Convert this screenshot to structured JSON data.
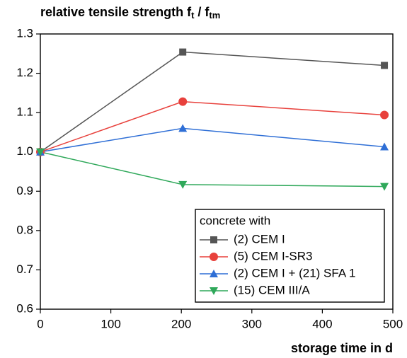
{
  "chart_data": {
    "type": "line",
    "ylabel": [
      {
        "text": "relative tensile strength f"
      },
      {
        "text": "t",
        "sub": true
      },
      {
        "text": " / f"
      },
      {
        "text": "tm",
        "sub": true
      }
    ],
    "xlabel": "storage time in d",
    "xlim": [
      0,
      500
    ],
    "xticks": [
      0,
      100,
      200,
      300,
      400,
      500
    ],
    "ylim": [
      0.6,
      1.3
    ],
    "yticks": [
      0.6,
      0.7,
      0.8,
      0.9,
      {
        "value": 1.0,
        "label": "1.0"
      },
      1.1,
      1.2,
      1.3
    ],
    "legend_title": "concrete with",
    "legend_position": "lower right",
    "x": [
      0,
      202,
      488
    ],
    "series": [
      {
        "name": "(2) CEM I",
        "color": "#555555",
        "marker": "square",
        "values": [
          1.0,
          1.254,
          1.22
        ]
      },
      {
        "name": "(5) CEM I-SR3",
        "color": "#e8413c",
        "marker": "circle",
        "values": [
          1.0,
          1.128,
          1.094
        ]
      },
      {
        "name": "(2) CEM I + (21) SFA 1",
        "color": "#2f6fd6",
        "marker": "triangle-up",
        "values": [
          1.0,
          1.06,
          1.013
        ]
      },
      {
        "name": "(15) CEM III/A",
        "color": "#2fa85a",
        "marker": "triangle-down",
        "values": [
          1.0,
          0.917,
          0.912
        ]
      }
    ]
  }
}
